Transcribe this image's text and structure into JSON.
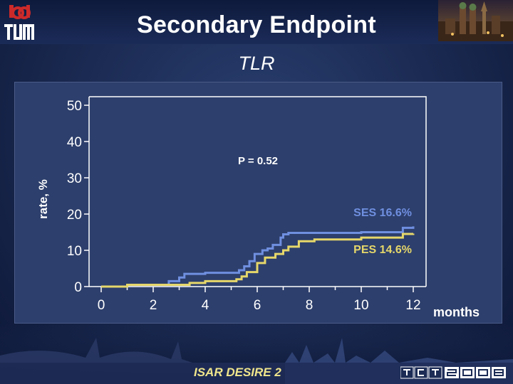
{
  "header": {
    "title": "Secondary Endpoint",
    "subtitle": "TLR"
  },
  "footer": {
    "study_name": "ISAR DESIRE 2",
    "event_logo": "TCT2008"
  },
  "icons": {
    "left_logo": "tum-logo",
    "right_image": "munich-skyline-photo",
    "bottom_image": "bridge-city-skyline"
  },
  "colors": {
    "ses": "#6f8fe0",
    "pes": "#e6d76a",
    "axis": "#ffffff",
    "background": "#1c2c55"
  },
  "chart_data": {
    "type": "line",
    "title": "",
    "xlabel": "months",
    "ylabel": "rate, %",
    "xlim": [
      0,
      12
    ],
    "ylim": [
      0,
      50
    ],
    "x_ticks": [
      "0",
      "2",
      "4",
      "6",
      "8",
      "10",
      "12"
    ],
    "y_ticks": [
      "0",
      "10",
      "20",
      "30",
      "40",
      "50"
    ],
    "annotation": "P = 0.52",
    "series": [
      {
        "name": "SES",
        "label": "SES 16.6%",
        "x": [
          0,
          1,
          2.5,
          2.6,
          3.0,
          3.2,
          4.0,
          5.3,
          5.5,
          5.7,
          5.9,
          6.2,
          6.4,
          6.6,
          6.9,
          7.0,
          7.2,
          10.0,
          11.6,
          12.0
        ],
        "y": [
          0,
          0.5,
          0.5,
          1.5,
          2.5,
          3.5,
          3.8,
          4.5,
          5.6,
          7.0,
          9.0,
          10.0,
          10.5,
          11.5,
          13.5,
          14.4,
          14.8,
          15.0,
          16.2,
          16.6
        ]
      },
      {
        "name": "PES",
        "label": "PES 14.6%",
        "x": [
          0,
          1,
          3.0,
          3.4,
          4.0,
          5.2,
          5.4,
          5.6,
          6.0,
          6.3,
          6.7,
          7.0,
          7.2,
          7.6,
          8.2,
          10.0,
          11.6,
          12.0
        ],
        "y": [
          0,
          0.5,
          0.5,
          1.0,
          1.5,
          2.0,
          2.8,
          4.0,
          6.5,
          8.0,
          9.0,
          10.0,
          11.0,
          12.5,
          13.0,
          13.5,
          14.5,
          14.6
        ]
      }
    ],
    "grid": false,
    "legend": "inline-right"
  }
}
